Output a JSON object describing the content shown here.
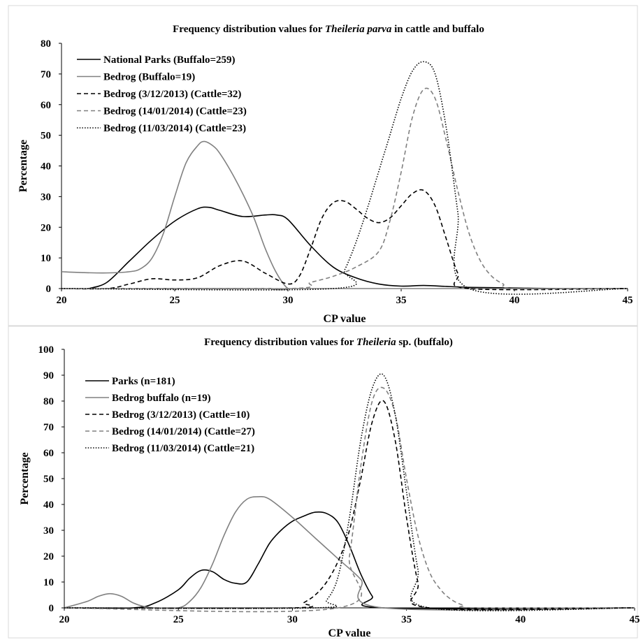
{
  "chart_data": [
    {
      "type": "line",
      "title_parts": [
        "Frequency distribution values for ",
        "Theileria parva",
        " in cattle and buffalo"
      ],
      "xlabel": "CP value",
      "ylabel": "Percentage",
      "xlim": [
        20,
        45
      ],
      "ylim": [
        0,
        80
      ],
      "xticks": [
        20,
        25,
        30,
        35,
        40,
        45
      ],
      "yticks": [
        0,
        10,
        20,
        30,
        40,
        50,
        60,
        70,
        80
      ],
      "grid": false,
      "legend_position": "top-left",
      "series": [
        {
          "name": "National Parks (Buffalo=259)",
          "style": "solid",
          "color": "#000000",
          "x": [
            21.2,
            22,
            23,
            24,
            25,
            26,
            26.5,
            27,
            28,
            29,
            29.5,
            30,
            31,
            32,
            33,
            34,
            35,
            36,
            37,
            38,
            40,
            42,
            45
          ],
          "y": [
            0,
            2,
            9,
            16,
            22,
            26,
            26.5,
            25.5,
            23.5,
            24,
            24,
            22.5,
            14,
            7,
            3.5,
            1.5,
            0.8,
            1,
            0.7,
            0.4,
            0.2,
            0,
            0
          ]
        },
        {
          "name": "Bedrog (Buffalo=19)",
          "style": "solid",
          "color": "#808080",
          "x": [
            20,
            21,
            22,
            23,
            23.5,
            24,
            24.5,
            25,
            25.5,
            26,
            26.3,
            26.7,
            27,
            27.5,
            28,
            28.5,
            29,
            29.5,
            30,
            30.5,
            45
          ],
          "y": [
            5.5,
            5.2,
            5.1,
            5.5,
            6.5,
            10,
            18,
            30,
            41,
            46.5,
            48,
            46.5,
            44,
            38,
            31,
            23,
            13,
            5,
            0,
            0,
            0
          ]
        },
        {
          "name": "Bedrog (3/12/2013) (Cattle=32)",
          "style": "dashed",
          "color": "#000000",
          "x": [
            20,
            22,
            23,
            24,
            25,
            26,
            27,
            28,
            29,
            30,
            30.5,
            31,
            31.5,
            32,
            32.5,
            33,
            33.5,
            34,
            34.5,
            35,
            35.5,
            36,
            36.5,
            37,
            37.5,
            38,
            45
          ],
          "y": [
            0,
            0,
            1.5,
            3.2,
            2.8,
            3.5,
            7.5,
            9,
            5,
            1.5,
            4,
            13,
            23,
            28,
            28.5,
            26,
            23,
            21.5,
            23,
            27,
            31,
            32,
            27,
            16,
            5,
            0,
            0
          ]
        },
        {
          "name": "Bedrog (14/01/2014) (Cattle=23)",
          "style": "dashed",
          "color": "#808080",
          "x": [
            20,
            30,
            31,
            32,
            33,
            34,
            34.5,
            35,
            35.5,
            36,
            36.5,
            37,
            37.5,
            38,
            38.5,
            39,
            39.5,
            40,
            45
          ],
          "y": [
            0,
            0,
            2,
            4,
            7,
            12,
            22,
            38,
            56,
            65,
            62,
            48,
            32,
            18,
            9,
            4,
            1.5,
            0,
            0
          ]
        },
        {
          "name": "Bedrog (11/03/2014) (Cattle=23)",
          "style": "dotted",
          "color": "#000000",
          "x": [
            20,
            32,
            32.5,
            33,
            33.5,
            34,
            34.5,
            35,
            35.5,
            36,
            36.5,
            37,
            37.5,
            38,
            45
          ],
          "y": [
            0,
            0,
            6,
            15,
            26,
            38,
            50,
            62,
            71,
            74,
            70,
            52,
            25,
            0,
            0
          ]
        }
      ]
    },
    {
      "type": "line",
      "title_parts": [
        "Frequency distribution values for ",
        "Theileria",
        " sp. (buffalo)"
      ],
      "xlabel": "CP value",
      "ylabel": "Percentage",
      "xlim": [
        20,
        45
      ],
      "ylim": [
        0,
        100
      ],
      "xticks": [
        20,
        25,
        30,
        35,
        40,
        45
      ],
      "yticks": [
        0,
        10,
        20,
        30,
        40,
        50,
        60,
        70,
        80,
        90,
        100
      ],
      "grid": false,
      "legend_position": "top-left",
      "series": [
        {
          "name": "Parks (n=181)",
          "style": "solid",
          "color": "#000000",
          "x": [
            20,
            23,
            24,
            25,
            25.5,
            26,
            26.5,
            27,
            27.5,
            28,
            28.5,
            29,
            29.5,
            30,
            30.5,
            31,
            31.5,
            32,
            32.5,
            33,
            33.5,
            34,
            45
          ],
          "y": [
            0,
            0,
            2,
            7,
            11.5,
            14.5,
            14,
            11,
            9.5,
            10,
            17,
            25,
            30,
            33.5,
            35.5,
            37,
            36.5,
            33,
            24,
            13,
            4.5,
            0,
            0
          ]
        },
        {
          "name": "Bedrog buffalo (n=19)",
          "style": "solid",
          "color": "#808080",
          "x": [
            20,
            21,
            21.5,
            22,
            22.5,
            23,
            23.5,
            24,
            25,
            25.5,
            26,
            26.5,
            27,
            27.5,
            28,
            28.5,
            29,
            30,
            31,
            32,
            33,
            34,
            45
          ],
          "y": [
            0,
            2.5,
            4.5,
            5.5,
            4.5,
            2,
            0.5,
            0,
            0,
            2.5,
            8,
            17,
            28,
            37,
            42,
            43,
            42,
            35,
            27,
            19,
            11,
            0,
            0
          ]
        },
        {
          "name": "Bedrog (3/12/2013) (Cattle=10)",
          "style": "dashed",
          "color": "#000000",
          "x": [
            20,
            30,
            30.5,
            31,
            31.5,
            32,
            32.5,
            33,
            33.5,
            34,
            34.5,
            35,
            35.5,
            36,
            45
          ],
          "y": [
            0,
            0,
            2,
            5,
            10,
            18,
            30,
            50,
            72,
            80,
            65,
            35,
            10,
            0,
            0
          ]
        },
        {
          "name": "Bedrog (14/01/2014) (Cattle=27)",
          "style": "dashed",
          "color": "#808080",
          "x": [
            20,
            32,
            32.5,
            33,
            33.5,
            34,
            34.5,
            35,
            35.5,
            36,
            36.5,
            37,
            37.5,
            38,
            45
          ],
          "y": [
            0,
            0,
            20,
            55,
            80,
            85,
            75,
            50,
            28,
            14,
            7,
            3,
            1,
            0,
            0
          ]
        },
        {
          "name": "Bedrog (11/03/2014) (Cattle=21)",
          "style": "dotted",
          "color": "#000000",
          "x": [
            20,
            31,
            31.5,
            32,
            32.5,
            33,
            33.5,
            34,
            34.5,
            35,
            35.5,
            36,
            45
          ],
          "y": [
            0,
            0,
            3,
            12,
            35,
            65,
            85,
            90,
            75,
            45,
            15,
            0,
            0
          ]
        }
      ]
    }
  ]
}
